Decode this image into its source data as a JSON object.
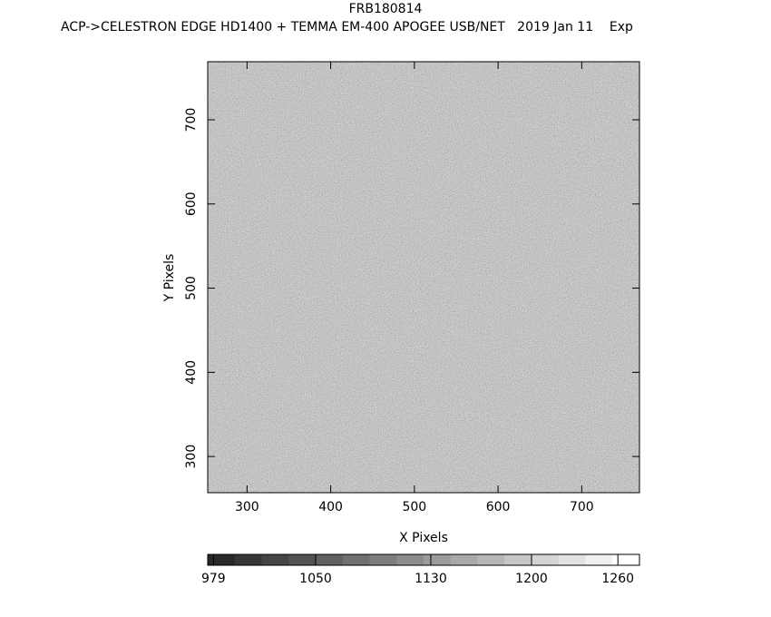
{
  "chart_data": {
    "type": "image",
    "title": "FRB180814",
    "subtitle": "ACP->CELESTRON EDGE HD1400 + TEMMA EM-400 APOGEE USB/NET   2019 Jan 11    Exp",
    "x_label": "X Pixels",
    "y_label": "Y Pixels",
    "xlim": [
      253,
      769
    ],
    "xticks": [
      300,
      400,
      500,
      600,
      700
    ],
    "ylim": [
      257,
      769
    ],
    "yticks": [
      300,
      400,
      500,
      600,
      700
    ],
    "colorbar": {
      "lim": [
        975,
        1275
      ],
      "ticks": [
        979,
        1050,
        1130,
        1200,
        1260
      ]
    }
  }
}
